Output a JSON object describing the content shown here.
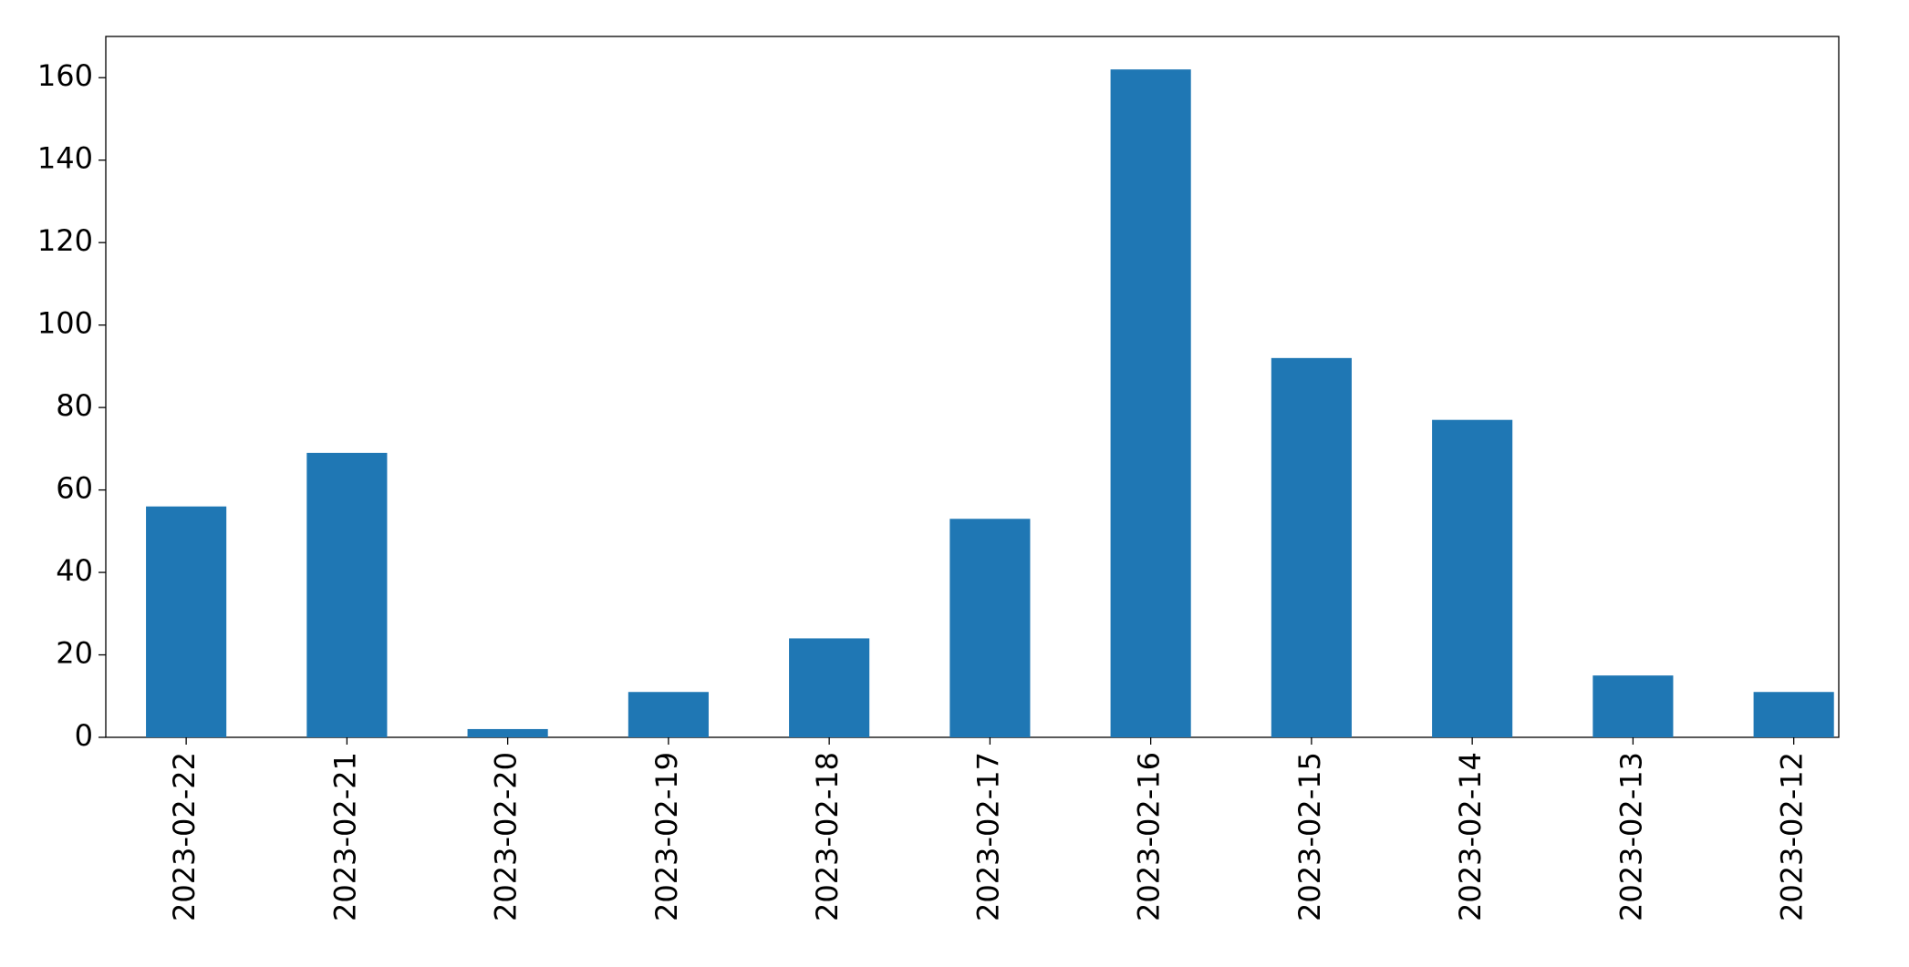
{
  "chart_data": {
    "type": "bar",
    "categories": [
      "2023-02-22",
      "2023-02-21",
      "2023-02-20",
      "2023-02-19",
      "2023-02-18",
      "2023-02-17",
      "2023-02-16",
      "2023-02-15",
      "2023-02-14",
      "2023-02-13",
      "2023-02-12"
    ],
    "values": [
      56,
      69,
      2,
      11,
      24,
      53,
      162,
      92,
      77,
      15,
      11
    ],
    "color": "#1f77b4",
    "ylim": [
      0,
      170
    ],
    "yticks": [
      0,
      20,
      40,
      60,
      80,
      100,
      120,
      140,
      160
    ],
    "grid": false
  }
}
